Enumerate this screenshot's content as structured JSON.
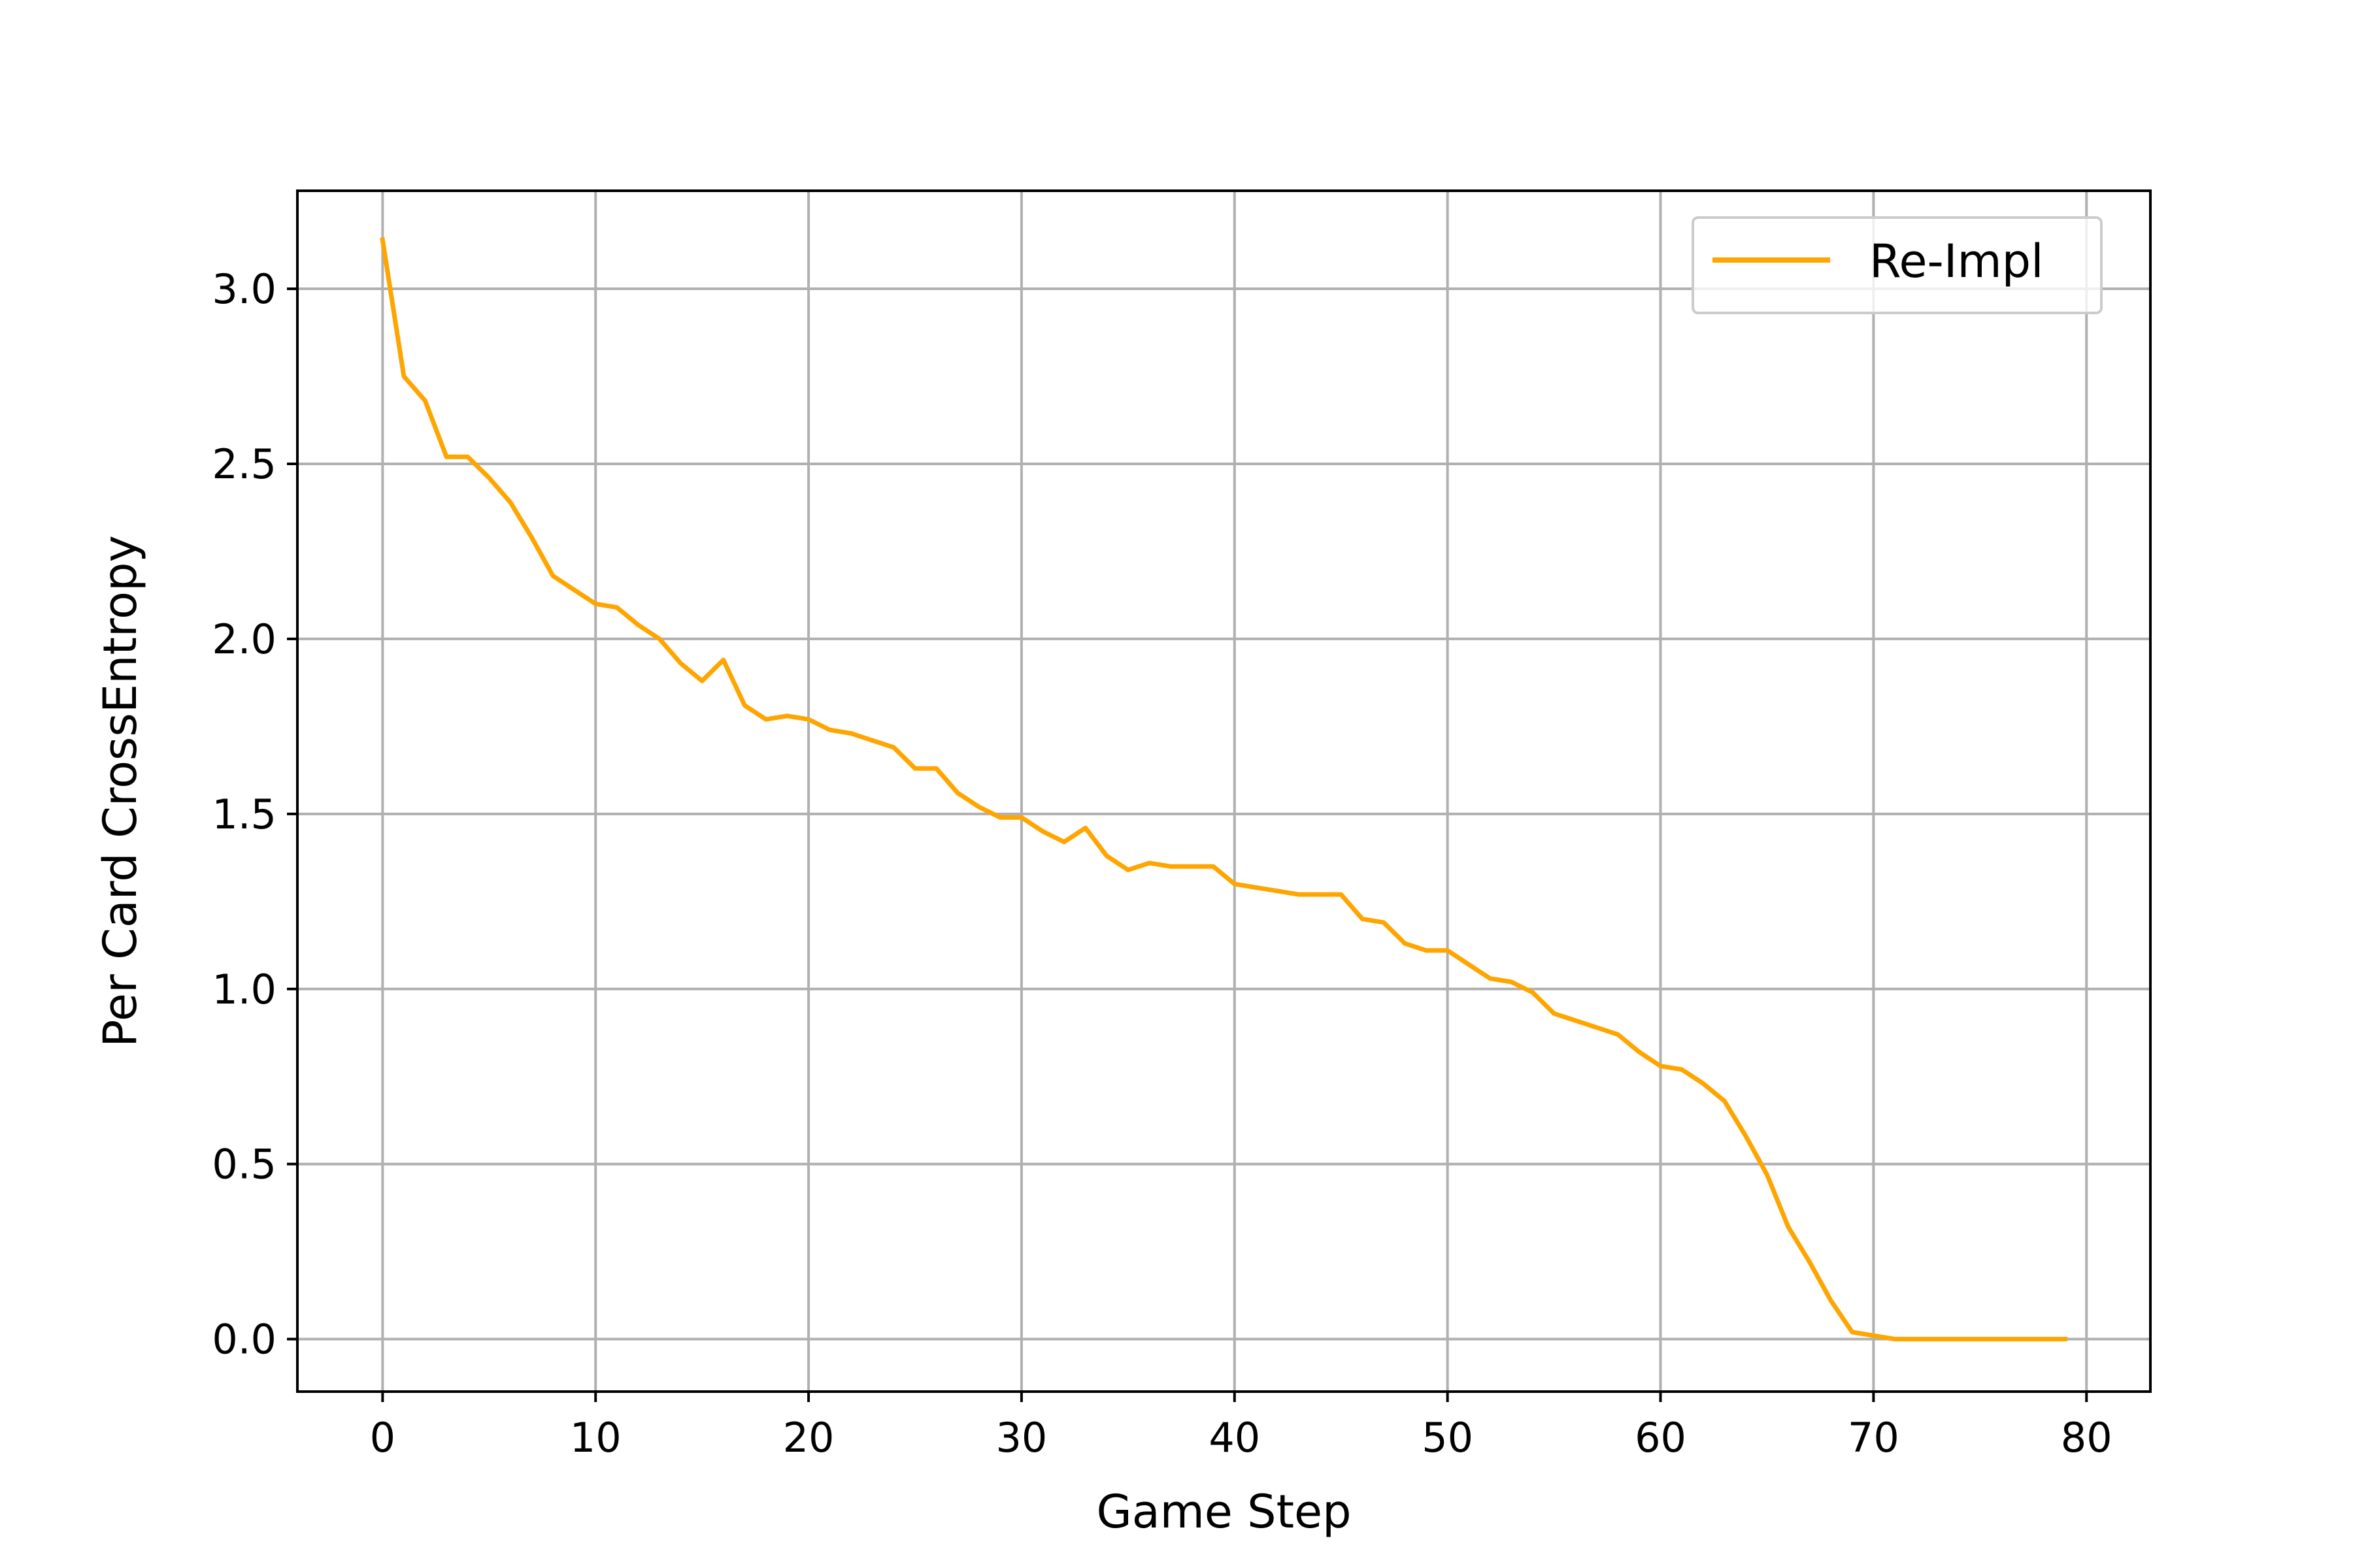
{
  "chart_data": {
    "type": "line",
    "title": "",
    "xlabel": "Game Step",
    "ylabel": "Per Card CrossEntropy",
    "xlim": [
      -4,
      83
    ],
    "ylim": [
      -0.15,
      3.28
    ],
    "xticks": [
      0,
      10,
      20,
      30,
      40,
      50,
      60,
      70,
      80
    ],
    "xtick_labels": [
      "0",
      "10",
      "20",
      "30",
      "40",
      "50",
      "60",
      "70",
      "80"
    ],
    "yticks": [
      0.0,
      0.5,
      1.0,
      1.5,
      2.0,
      2.5,
      3.0
    ],
    "ytick_labels": [
      "0.0",
      "0.5",
      "1.0",
      "1.5",
      "2.0",
      "2.5",
      "3.0"
    ],
    "grid": true,
    "legend_position": "top-right",
    "series": [
      {
        "name": "Re-Impl",
        "color": "#FFA500",
        "x": [
          0,
          1,
          2,
          3,
          4,
          5,
          6,
          7,
          8,
          9,
          10,
          11,
          12,
          13,
          14,
          15,
          16,
          17,
          18,
          19,
          20,
          21,
          22,
          23,
          24,
          25,
          26,
          27,
          28,
          29,
          30,
          31,
          32,
          33,
          34,
          35,
          36,
          37,
          38,
          39,
          40,
          41,
          42,
          43,
          44,
          45,
          46,
          47,
          48,
          49,
          50,
          51,
          52,
          53,
          54,
          55,
          56,
          57,
          58,
          59,
          60,
          61,
          62,
          63,
          64,
          65,
          66,
          67,
          68,
          69,
          70,
          71,
          72,
          73,
          74,
          75,
          76,
          77,
          78,
          79
        ],
        "y": [
          3.14,
          2.75,
          2.68,
          2.52,
          2.52,
          2.46,
          2.39,
          2.29,
          2.18,
          2.14,
          2.1,
          2.09,
          2.04,
          2.0,
          1.93,
          1.88,
          1.94,
          1.81,
          1.77,
          1.78,
          1.77,
          1.74,
          1.73,
          1.71,
          1.69,
          1.63,
          1.63,
          1.56,
          1.52,
          1.49,
          1.49,
          1.45,
          1.42,
          1.46,
          1.38,
          1.34,
          1.36,
          1.35,
          1.35,
          1.35,
          1.3,
          1.29,
          1.28,
          1.27,
          1.27,
          1.27,
          1.2,
          1.19,
          1.13,
          1.11,
          1.11,
          1.07,
          1.03,
          1.02,
          0.99,
          0.93,
          0.91,
          0.89,
          0.87,
          0.82,
          0.78,
          0.77,
          0.73,
          0.68,
          0.58,
          0.47,
          0.32,
          0.22,
          0.11,
          0.02,
          0.01,
          0.0,
          0.0,
          0.0,
          0.0,
          0.0,
          0.0,
          0.0,
          0.0,
          0.0
        ]
      }
    ]
  }
}
